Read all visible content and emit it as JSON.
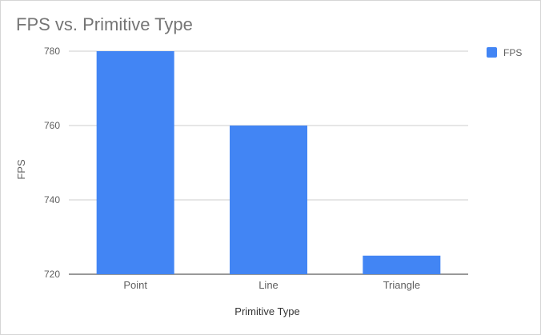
{
  "chart_data": {
    "type": "bar",
    "title": "FPS vs. Primitive Type",
    "xlabel": "Primitive Type",
    "ylabel": "FPS",
    "categories": [
      "Point",
      "Line",
      "Triangle"
    ],
    "series": [
      {
        "name": "FPS",
        "values": [
          780,
          760,
          725
        ]
      }
    ],
    "ylim": [
      720,
      780
    ],
    "yticks": [
      720,
      740,
      760,
      780
    ],
    "grid": true,
    "legend": "right",
    "colors": {
      "bar": "#4285f4",
      "grid": "#cccccc",
      "axis_text": "#5f5f5f",
      "title": "#757575"
    }
  }
}
